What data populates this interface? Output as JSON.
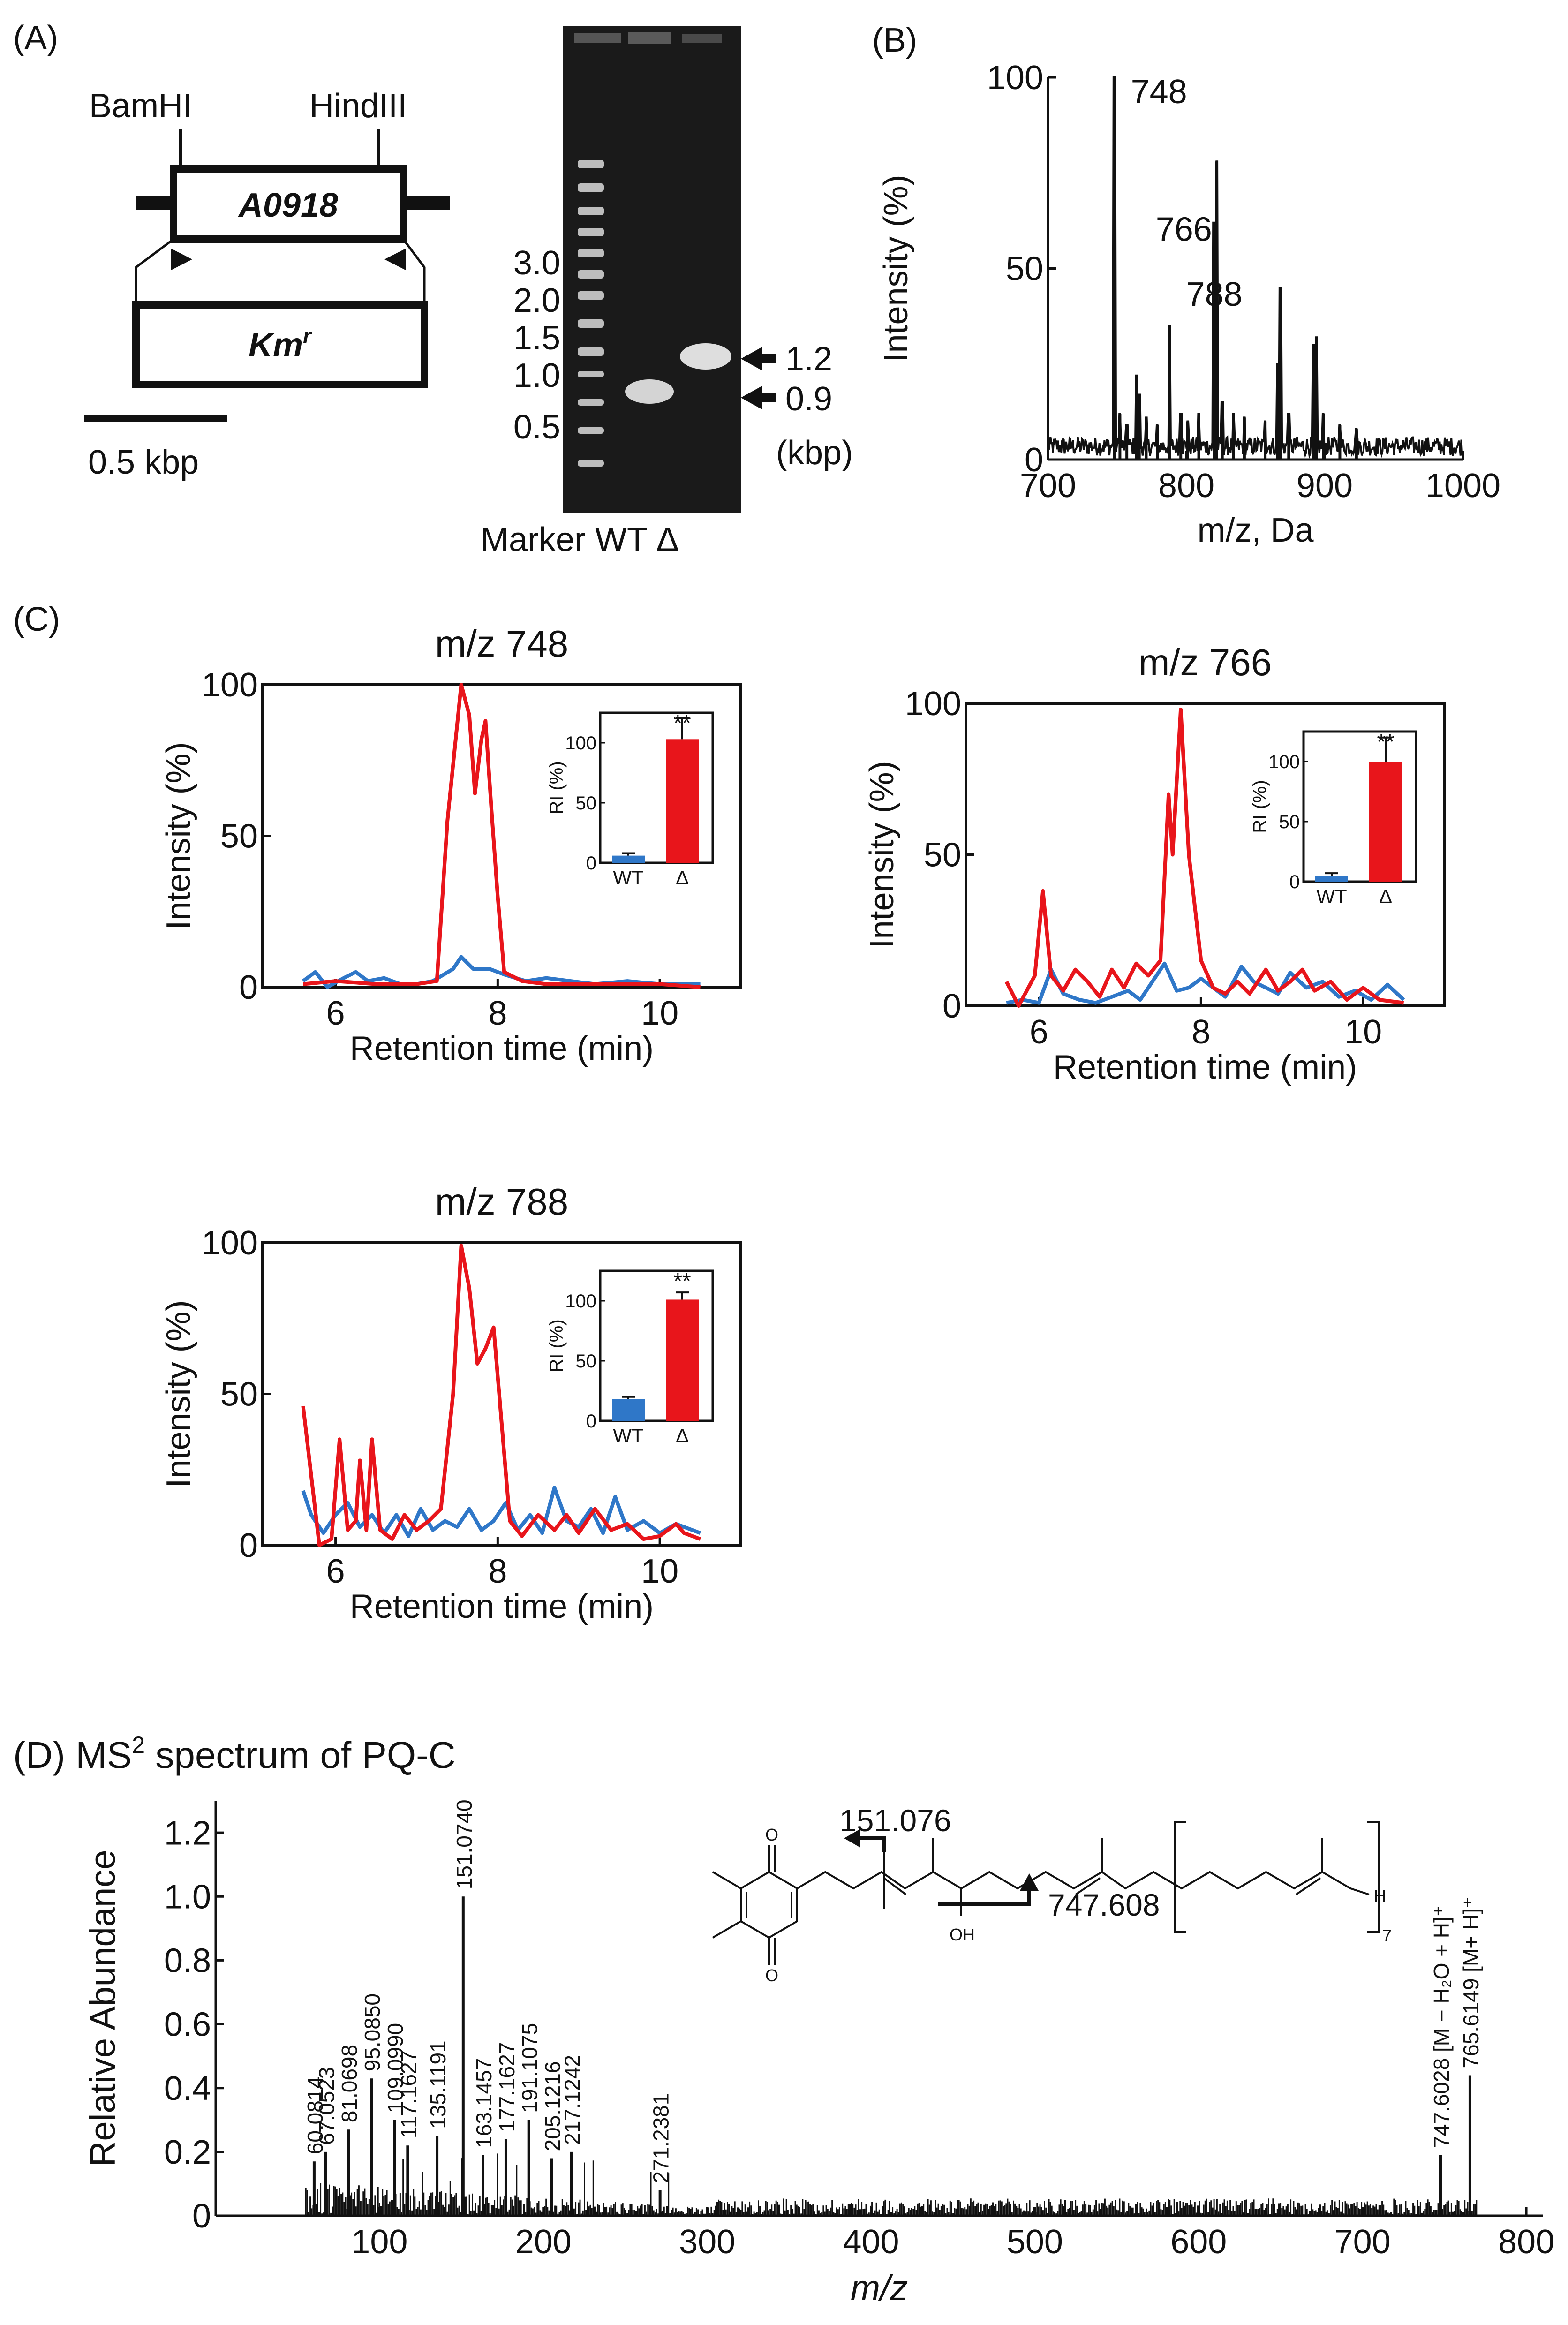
{
  "panel_labels": {
    "a": "(A)",
    "b": "(B)",
    "c": "(C)",
    "d_prefix": "(D) MS",
    "d_sup": "2",
    "d_suffix": " spectrum of PQ-C"
  },
  "panelA": {
    "bamhi": "BamHI",
    "hindiii": "HindIII",
    "gene": "A0918",
    "km": "Km",
    "km_sup": "r",
    "scale": "0.5 kbp",
    "ladder_labels": [
      "3.0",
      "2.0",
      "1.5",
      "1.0",
      "0.5"
    ],
    "band_wt": "0.9",
    "band_del": "1.2",
    "kbp": "(kbp)",
    "lane_labels": "Marker WT Δ"
  },
  "colors": {
    "red": "#e8151b",
    "blue": "#2f77c8",
    "black": "#111111",
    "gel": "#1a1a1a"
  },
  "chart_data": [
    {
      "id": "B",
      "type": "line",
      "title": "",
      "xlabel": "m/z, Da",
      "ylabel": "Intensity (%)",
      "xlim": [
        700,
        1000
      ],
      "ylim": [
        0,
        100
      ],
      "xticks": [
        700,
        800,
        900,
        1000
      ],
      "yticks": [
        0,
        50,
        100
      ],
      "peaks": [
        [
          748,
          100
        ],
        [
          752,
          12
        ],
        [
          757,
          9
        ],
        [
          764,
          22
        ],
        [
          766,
          17
        ],
        [
          771,
          11
        ],
        [
          779,
          9
        ],
        [
          788,
          35
        ],
        [
          796,
          12
        ],
        [
          801,
          10
        ],
        [
          809,
          12
        ],
        [
          820,
          62
        ],
        [
          822,
          78
        ],
        [
          826,
          15
        ],
        [
          834,
          12
        ],
        [
          842,
          11
        ],
        [
          857,
          10
        ],
        [
          866,
          25
        ],
        [
          868,
          45
        ],
        [
          874,
          12
        ],
        [
          892,
          30
        ],
        [
          894,
          32
        ],
        [
          899,
          12
        ],
        [
          911,
          9
        ],
        [
          923,
          8
        ]
      ],
      "annotations": [
        {
          "text": "748",
          "x": 748,
          "y": 100
        },
        {
          "text": "766",
          "x": 766,
          "y": 64
        },
        {
          "text": "788",
          "x": 788,
          "y": 47
        }
      ]
    },
    {
      "id": "C1",
      "type": "line",
      "title": "m/z 748",
      "xlabel": "Retention time (min)",
      "ylabel": "Intensity (%)",
      "xlim": [
        5.1,
        11.0
      ],
      "ylim": [
        0,
        100
      ],
      "xticks": [
        6,
        8,
        10
      ],
      "yticks": [
        0,
        50,
        100
      ],
      "series": [
        {
          "name": "Δ",
          "color": "#e8151b",
          "points": [
            [
              5.6,
              1
            ],
            [
              6.0,
              2
            ],
            [
              6.5,
              1
            ],
            [
              7.0,
              1
            ],
            [
              7.25,
              2
            ],
            [
              7.38,
              55
            ],
            [
              7.55,
              100
            ],
            [
              7.65,
              90
            ],
            [
              7.72,
              64
            ],
            [
              7.8,
              82
            ],
            [
              7.85,
              88
            ],
            [
              7.92,
              60
            ],
            [
              8.0,
              30
            ],
            [
              8.08,
              5
            ],
            [
              8.3,
              2
            ],
            [
              8.6,
              1
            ],
            [
              9.0,
              1
            ],
            [
              9.5,
              1
            ],
            [
              10.0,
              1
            ],
            [
              10.5,
              0
            ]
          ]
        },
        {
          "name": "WT",
          "color": "#2f77c8",
          "points": [
            [
              5.6,
              2
            ],
            [
              5.75,
              5
            ],
            [
              5.9,
              0
            ],
            [
              6.1,
              3
            ],
            [
              6.25,
              5
            ],
            [
              6.4,
              2
            ],
            [
              6.6,
              3
            ],
            [
              6.8,
              1
            ],
            [
              7.0,
              1
            ],
            [
              7.2,
              2
            ],
            [
              7.45,
              6
            ],
            [
              7.55,
              10
            ],
            [
              7.7,
              6
            ],
            [
              7.9,
              6
            ],
            [
              8.1,
              4
            ],
            [
              8.35,
              2
            ],
            [
              8.6,
              3
            ],
            [
              8.9,
              2
            ],
            [
              9.2,
              1
            ],
            [
              9.6,
              2
            ],
            [
              10.0,
              1
            ],
            [
              10.5,
              1
            ]
          ]
        }
      ],
      "inset": {
        "type": "bar",
        "categories": [
          "WT",
          "Δ"
        ],
        "values": [
          6,
          103
        ],
        "errors": [
          2,
          18
        ],
        "ylabel": "RI (%)",
        "ylim": [
          0,
          125
        ],
        "yticks": [
          0,
          50,
          100
        ],
        "annotation": "**"
      }
    },
    {
      "id": "C2",
      "type": "line",
      "title": "m/z 766",
      "xlabel": "Retention time (min)",
      "ylabel": "Intensity (%)",
      "xlim": [
        5.1,
        11.0
      ],
      "ylim": [
        0,
        100
      ],
      "xticks": [
        6,
        8,
        10
      ],
      "yticks": [
        0,
        50,
        100
      ],
      "series": [
        {
          "name": "Δ",
          "color": "#e8151b",
          "points": [
            [
              5.6,
              8
            ],
            [
              5.75,
              0
            ],
            [
              5.95,
              10
            ],
            [
              6.05,
              38
            ],
            [
              6.15,
              10
            ],
            [
              6.3,
              5
            ],
            [
              6.45,
              12
            ],
            [
              6.6,
              8
            ],
            [
              6.75,
              3
            ],
            [
              6.9,
              12
            ],
            [
              7.05,
              6
            ],
            [
              7.2,
              14
            ],
            [
              7.35,
              10
            ],
            [
              7.5,
              15
            ],
            [
              7.6,
              70
            ],
            [
              7.65,
              50
            ],
            [
              7.75,
              98
            ],
            [
              7.85,
              50
            ],
            [
              8.0,
              15
            ],
            [
              8.15,
              6
            ],
            [
              8.3,
              4
            ],
            [
              8.45,
              8
            ],
            [
              8.6,
              4
            ],
            [
              8.8,
              12
            ],
            [
              8.95,
              5
            ],
            [
              9.1,
              8
            ],
            [
              9.25,
              12
            ],
            [
              9.4,
              5
            ],
            [
              9.6,
              8
            ],
            [
              9.8,
              2
            ],
            [
              10.0,
              6
            ],
            [
              10.2,
              2
            ],
            [
              10.5,
              1
            ]
          ]
        },
        {
          "name": "WT",
          "color": "#2f77c8",
          "points": [
            [
              5.6,
              1
            ],
            [
              5.8,
              2
            ],
            [
              6.0,
              1
            ],
            [
              6.15,
              12
            ],
            [
              6.3,
              4
            ],
            [
              6.5,
              2
            ],
            [
              6.7,
              1
            ],
            [
              6.9,
              3
            ],
            [
              7.1,
              5
            ],
            [
              7.25,
              2
            ],
            [
              7.4,
              8
            ],
            [
              7.55,
              14
            ],
            [
              7.7,
              5
            ],
            [
              7.85,
              6
            ],
            [
              8.0,
              9
            ],
            [
              8.15,
              6
            ],
            [
              8.3,
              3
            ],
            [
              8.5,
              13
            ],
            [
              8.65,
              8
            ],
            [
              8.8,
              6
            ],
            [
              8.95,
              4
            ],
            [
              9.1,
              11
            ],
            [
              9.3,
              6
            ],
            [
              9.5,
              8
            ],
            [
              9.7,
              3
            ],
            [
              9.9,
              5
            ],
            [
              10.1,
              2
            ],
            [
              10.3,
              7
            ],
            [
              10.5,
              2
            ]
          ]
        }
      ],
      "inset": {
        "type": "bar",
        "categories": [
          "WT",
          "Δ"
        ],
        "values": [
          5,
          100
        ],
        "errors": [
          2,
          20
        ],
        "ylabel": "RI (%)",
        "ylim": [
          0,
          125
        ],
        "yticks": [
          0,
          50,
          100
        ],
        "annotation": "**"
      }
    },
    {
      "id": "C3",
      "type": "line",
      "title": "m/z 788",
      "xlabel": "Retention time (min)",
      "ylabel": "Intensity (%)",
      "xlim": [
        5.1,
        11.0
      ],
      "ylim": [
        0,
        100
      ],
      "xticks": [
        6,
        8,
        10
      ],
      "yticks": [
        0,
        50,
        100
      ],
      "series": [
        {
          "name": "Δ",
          "color": "#e8151b",
          "points": [
            [
              5.6,
              46
            ],
            [
              5.8,
              0
            ],
            [
              5.95,
              2
            ],
            [
              6.05,
              35
            ],
            [
              6.15,
              5
            ],
            [
              6.25,
              8
            ],
            [
              6.3,
              28
            ],
            [
              6.38,
              5
            ],
            [
              6.45,
              35
            ],
            [
              6.55,
              5
            ],
            [
              6.7,
              2
            ],
            [
              6.85,
              10
            ],
            [
              7.0,
              5
            ],
            [
              7.15,
              8
            ],
            [
              7.3,
              12
            ],
            [
              7.45,
              50
            ],
            [
              7.55,
              99
            ],
            [
              7.65,
              85
            ],
            [
              7.75,
              60
            ],
            [
              7.85,
              65
            ],
            [
              7.95,
              72
            ],
            [
              8.05,
              40
            ],
            [
              8.15,
              8
            ],
            [
              8.3,
              3
            ],
            [
              8.5,
              10
            ],
            [
              8.7,
              5
            ],
            [
              8.85,
              10
            ],
            [
              9.0,
              4
            ],
            [
              9.2,
              12
            ],
            [
              9.4,
              5
            ],
            [
              9.6,
              7
            ],
            [
              9.8,
              2
            ],
            [
              10.0,
              3
            ],
            [
              10.2,
              7
            ],
            [
              10.3,
              4
            ],
            [
              10.5,
              2
            ]
          ]
        },
        {
          "name": "WT",
          "color": "#2f77c8",
          "points": [
            [
              5.6,
              18
            ],
            [
              5.7,
              10
            ],
            [
              5.85,
              4
            ],
            [
              6.0,
              10
            ],
            [
              6.15,
              14
            ],
            [
              6.3,
              6
            ],
            [
              6.45,
              10
            ],
            [
              6.6,
              4
            ],
            [
              6.75,
              10
            ],
            [
              6.9,
              3
            ],
            [
              7.05,
              12
            ],
            [
              7.2,
              5
            ],
            [
              7.35,
              8
            ],
            [
              7.5,
              6
            ],
            [
              7.65,
              12
            ],
            [
              7.8,
              5
            ],
            [
              7.95,
              8
            ],
            [
              8.1,
              14
            ],
            [
              8.25,
              5
            ],
            [
              8.4,
              10
            ],
            [
              8.55,
              4
            ],
            [
              8.7,
              19
            ],
            [
              8.85,
              8
            ],
            [
              9.0,
              6
            ],
            [
              9.15,
              12
            ],
            [
              9.3,
              4
            ],
            [
              9.45,
              16
            ],
            [
              9.6,
              5
            ],
            [
              9.8,
              8
            ],
            [
              10.0,
              4
            ],
            [
              10.2,
              7
            ],
            [
              10.4,
              5
            ],
            [
              10.5,
              4
            ]
          ]
        }
      ],
      "inset": {
        "type": "bar",
        "categories": [
          "WT",
          "Δ"
        ],
        "values": [
          18,
          101
        ],
        "errors": [
          2,
          6
        ],
        "ylabel": "RI (%)",
        "ylim": [
          0,
          125
        ],
        "yticks": [
          0,
          50,
          100
        ],
        "annotation": "**"
      }
    },
    {
      "id": "D",
      "type": "bar",
      "title": "MS2 spectrum of PQ-C",
      "xlabel": "m/z",
      "ylabel": "Relative Abundance",
      "xlim": [
        0,
        810
      ],
      "ylim": [
        0,
        1.3
      ],
      "xticks": [
        100,
        200,
        300,
        400,
        500,
        600,
        700,
        800
      ],
      "yticks": [
        0,
        0.2,
        0.4,
        0.6,
        0.8,
        1.0,
        1.2
      ],
      "ytick_labels": [
        "0",
        "0.2",
        "0.4",
        "0.6",
        "0.8",
        "1.0",
        "1.2"
      ],
      "labeled_peaks": [
        {
          "mz": 60.0814,
          "y": 0.17,
          "label": "60.0814"
        },
        {
          "mz": 67.0523,
          "y": 0.2,
          "label": "67.0523"
        },
        {
          "mz": 81.0698,
          "y": 0.27,
          "label": "81.0698"
        },
        {
          "mz": 95.085,
          "y": 0.43,
          "label": "95.0850"
        },
        {
          "mz": 109.099,
          "y": 0.3,
          "label": "109.0990"
        },
        {
          "mz": 117.1627,
          "y": 0.22,
          "label": "117.1627"
        },
        {
          "mz": 135.1191,
          "y": 0.25,
          "label": "135.1191"
        },
        {
          "mz": 151.074,
          "y": 1.0,
          "label": "151.0740"
        },
        {
          "mz": 163.1457,
          "y": 0.19,
          "label": "163.1457"
        },
        {
          "mz": 177.1627,
          "y": 0.24,
          "label": "177.1627"
        },
        {
          "mz": 191.1075,
          "y": 0.3,
          "label": "191.1075"
        },
        {
          "mz": 205.1216,
          "y": 0.18,
          "label": "205.1216"
        },
        {
          "mz": 217.1242,
          "y": 0.2,
          "label": "217.1242"
        },
        {
          "mz": 271.2381,
          "y": 0.08,
          "label": "271.2381"
        },
        {
          "mz": 747.6028,
          "y": 0.19,
          "label": "747.6028 [M − H₂O + H]⁺"
        },
        {
          "mz": 765.6149,
          "y": 0.44,
          "label": "765.6149 [M+ H]⁺"
        }
      ],
      "structure": {
        "frag1": "151.076",
        "frag2": "747.608",
        "oh": "OH",
        "h": "H",
        "o_top": "O",
        "o_bottom": "O",
        "repeat": "7"
      }
    }
  ]
}
